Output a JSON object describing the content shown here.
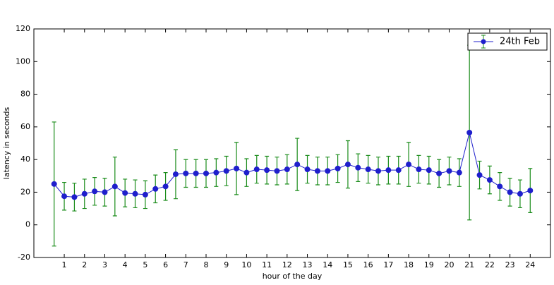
{
  "chart_data": {
    "type": "errorbar_line",
    "xlabel": "hour of the day",
    "ylabel": "latency in seconds",
    "x": [
      0.5,
      1,
      1.5,
      2,
      2.5,
      3,
      3.5,
      4,
      4.5,
      5,
      5.5,
      6,
      6.5,
      7,
      7.5,
      8,
      8.5,
      9,
      9.5,
      10,
      10.5,
      11,
      11.5,
      12,
      12.5,
      13,
      13.5,
      14,
      14.5,
      15,
      15.5,
      16,
      16.5,
      17,
      17.5,
      18,
      18.5,
      19,
      19.5,
      20,
      20.5,
      21,
      21.5,
      22,
      22.5,
      23,
      23.5,
      24
    ],
    "series": [
      {
        "name": "24th Feb",
        "color": "#1f1fcc",
        "error_color": "#1a8c1a",
        "values": [
          25,
          17.5,
          17,
          19,
          20.5,
          20,
          23.5,
          19.5,
          19,
          18.5,
          22,
          23.5,
          31,
          31.5,
          31.5,
          31.5,
          32,
          33,
          34.5,
          32,
          34,
          33.5,
          33,
          34,
          37,
          34,
          33,
          33,
          34.5,
          37,
          35,
          34,
          33,
          33.5,
          33.5,
          37,
          34,
          33.5,
          31.5,
          33,
          32,
          56.5,
          30.5,
          27.5,
          23.5,
          20,
          19,
          21
        ],
        "errors": [
          38,
          8.5,
          8.5,
          9,
          8.5,
          8.5,
          18,
          8.5,
          8.5,
          8.5,
          8.5,
          8.5,
          15,
          8.5,
          8.5,
          8.5,
          8.5,
          9,
          16,
          8.5,
          8.5,
          8.5,
          8.5,
          9,
          16,
          8.5,
          8.5,
          8.5,
          8.5,
          14.5,
          8.5,
          8.5,
          8.5,
          8.5,
          8.5,
          13.5,
          8.5,
          8.5,
          8.5,
          8.5,
          8.5,
          53.5,
          8.5,
          8.5,
          8.5,
          8.5,
          8.5,
          13.5
        ]
      }
    ],
    "xlim": [
      -0.5,
      25
    ],
    "xticks": [
      1,
      2,
      3,
      4,
      5,
      6,
      7,
      8,
      9,
      10,
      11,
      12,
      13,
      14,
      15,
      16,
      17,
      18,
      19,
      20,
      21,
      22,
      23,
      24
    ],
    "ylim": [
      -20,
      120
    ],
    "yticks": [
      -20,
      0,
      20,
      40,
      60,
      80,
      100,
      120
    ],
    "grid": false,
    "legend": "upper right"
  }
}
